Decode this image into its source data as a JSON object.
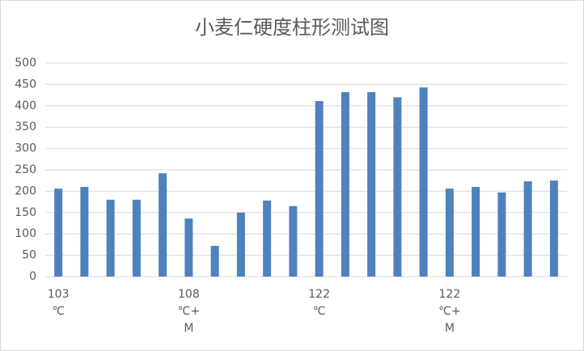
{
  "chart_data": {
    "type": "bar",
    "title": "小麦仁硬度柱形测试图",
    "categories": [
      "103\n℃",
      null,
      null,
      null,
      null,
      "108\n℃+\nM",
      null,
      null,
      null,
      null,
      "122\n℃",
      null,
      null,
      null,
      null,
      "122\n℃+\nM",
      null,
      null,
      null,
      null
    ],
    "values": [
      206,
      210,
      180,
      180,
      242,
      136,
      72,
      150,
      178,
      165,
      411,
      432,
      432,
      420,
      443,
      206,
      210,
      197,
      223,
      225
    ],
    "color": "#4f81bd",
    "ylim": [
      0,
      500
    ],
    "yticks": [
      0,
      50,
      100,
      150,
      200,
      250,
      300,
      350,
      400,
      450,
      500
    ],
    "grid": true
  }
}
